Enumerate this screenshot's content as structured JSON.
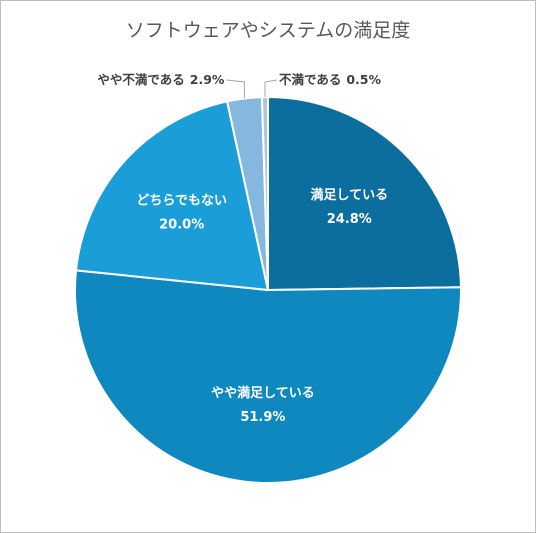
{
  "chart_data": {
    "type": "pie",
    "title": "ソフトウェアやシステムの満足度",
    "categories": [
      "満足している",
      "やや満足している",
      "どちらでもない",
      "やや不満である",
      "不満である"
    ],
    "values": [
      24.8,
      51.9,
      20.0,
      2.9,
      0.5
    ],
    "value_labels": [
      "24.8%",
      "51.9%",
      "20.0%",
      "2.9%",
      "0.5%"
    ],
    "colors": [
      "#0c6e9f",
      "#0f88c0",
      "#1b9ed8",
      "#86b7de",
      "#adc7e0"
    ]
  }
}
